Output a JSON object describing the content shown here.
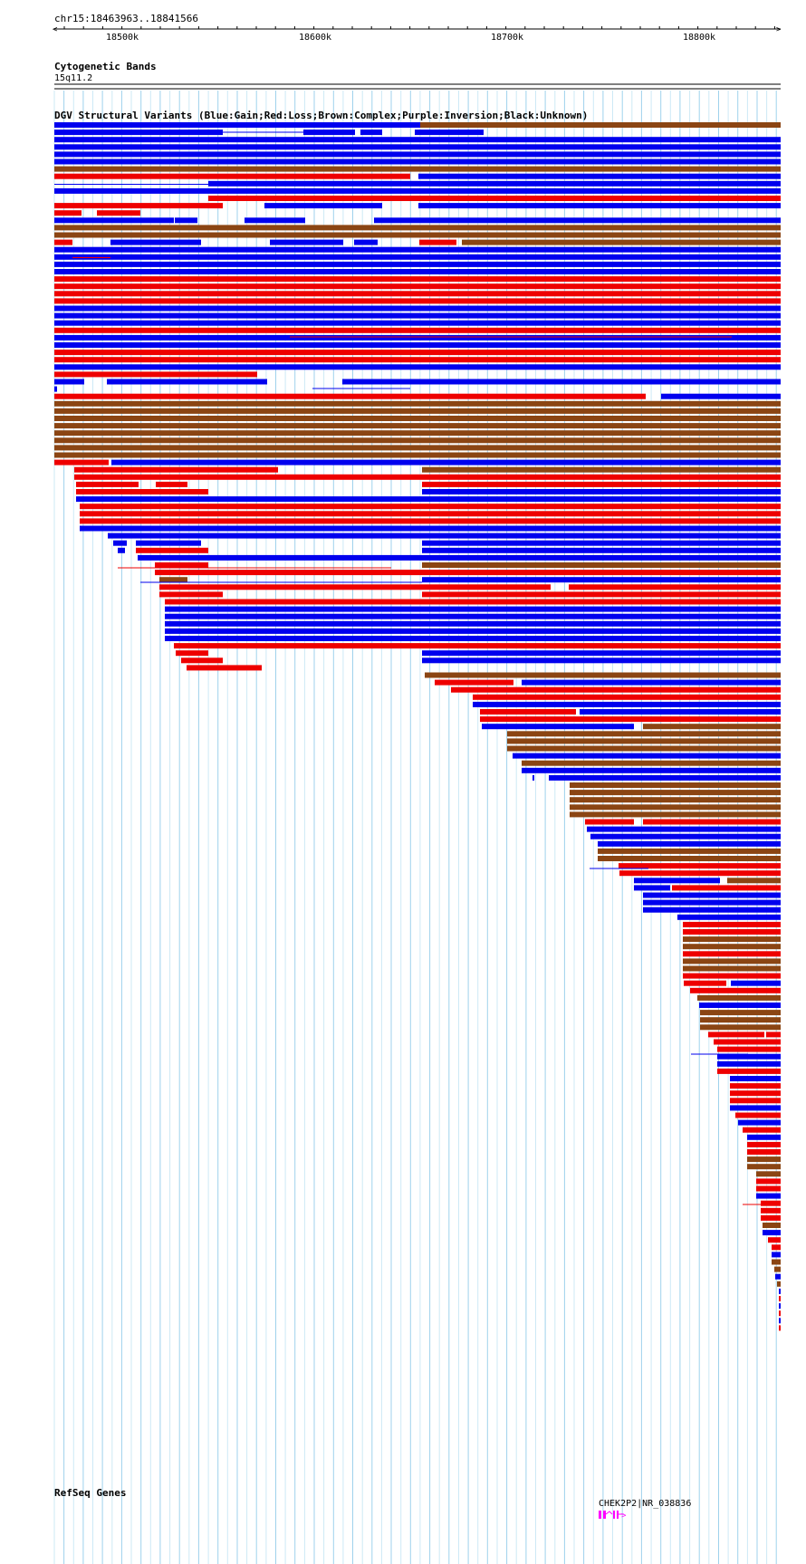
{
  "header": {
    "location": "chr15:18463963..18841566"
  },
  "ruler": {
    "ticks": [
      "18500k",
      "18600k",
      "18700k",
      "18800k"
    ]
  },
  "cytoband_track": {
    "title": "Cytogenetic Bands",
    "band": "15q11.2"
  },
  "dgv_track": {
    "title": "DGV Structural Variants (Blue:Gain;Red:Loss;Brown:Complex;Purple:Inversion;Black:Unknown)",
    "colors": {
      "gain": "#0000ee",
      "loss": "#ee0000",
      "complex": "#8b4513",
      "inversion": "#800080",
      "unknown": "#000000"
    }
  },
  "refseq_track": {
    "title": "RefSeq Genes",
    "gene_label": "CHEK2P2|NR_038836",
    "gene_color": "#ff00ff"
  }
}
